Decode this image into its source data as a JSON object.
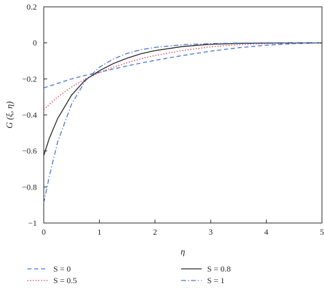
{
  "chart_data": {
    "type": "line",
    "xlabel": "η",
    "ylabel": "G (ξ, η)",
    "xlim": [
      0,
      5
    ],
    "ylim": [
      -1,
      0.2
    ],
    "xticks": [
      0,
      1,
      2,
      3,
      4,
      5
    ],
    "yticks": [
      0.2,
      0,
      -0.2,
      -0.4,
      -0.6,
      -0.8,
      -1
    ],
    "ytick_labels": [
      "0.2",
      "0",
      "−0.2",
      "−0.4",
      "−0.6",
      "−0.8",
      "−1"
    ],
    "grid": false,
    "legend_position": "bottom",
    "series": [
      {
        "name": "S = 0",
        "color": "#3f6fd6",
        "dash": "dashed",
        "x": [
          0,
          0.25,
          0.5,
          0.75,
          1,
          1.25,
          1.5,
          1.75,
          2,
          2.5,
          3,
          3.5,
          4,
          4.5,
          5
        ],
        "y": [
          -0.25,
          -0.225,
          -0.2,
          -0.18,
          -0.163,
          -0.145,
          -0.128,
          -0.112,
          -0.097,
          -0.07,
          -0.046,
          -0.027,
          -0.013,
          -0.004,
          0
        ]
      },
      {
        "name": "S = 0.5",
        "color": "#e0304a",
        "dash": "dotted",
        "x": [
          0,
          0.25,
          0.5,
          0.75,
          1,
          1.25,
          1.5,
          1.75,
          2,
          2.5,
          3,
          3.5,
          4,
          4.5,
          5
        ],
        "y": [
          -0.37,
          -0.3,
          -0.245,
          -0.2,
          -0.165,
          -0.135,
          -0.11,
          -0.088,
          -0.07,
          -0.042,
          -0.022,
          -0.01,
          -0.004,
          -0.001,
          0
        ]
      },
      {
        "name": "S = 0.8",
        "color": "#222222",
        "dash": "solid",
        "x": [
          0,
          0.1,
          0.25,
          0.5,
          0.75,
          1,
          1.25,
          1.5,
          1.75,
          2,
          2.5,
          3,
          3.5,
          4,
          4.5,
          5
        ],
        "y": [
          -0.625,
          -0.53,
          -0.42,
          -0.29,
          -0.205,
          -0.155,
          -0.115,
          -0.085,
          -0.06,
          -0.043,
          -0.02,
          -0.008,
          -0.003,
          -0.001,
          0,
          0
        ]
      },
      {
        "name": "S = 1",
        "color": "#4a6fc6",
        "dash": "dashdot",
        "x": [
          0,
          0.1,
          0.25,
          0.5,
          0.75,
          1,
          1.25,
          1.5,
          1.75,
          2,
          2.5,
          3,
          3.5,
          4,
          4.5,
          5
        ],
        "y": [
          -0.89,
          -0.74,
          -0.55,
          -0.34,
          -0.21,
          -0.135,
          -0.09,
          -0.058,
          -0.038,
          -0.025,
          -0.01,
          -0.004,
          -0.001,
          0,
          0,
          0
        ]
      }
    ]
  }
}
